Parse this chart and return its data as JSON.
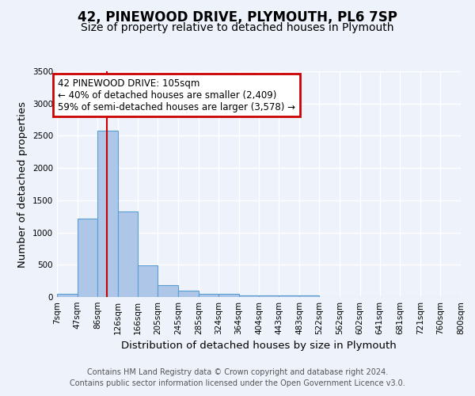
{
  "title": "42, PINEWOOD DRIVE, PLYMOUTH, PL6 7SP",
  "subtitle": "Size of property relative to detached houses in Plymouth",
  "xlabel": "Distribution of detached houses by size in Plymouth",
  "ylabel": "Number of detached properties",
  "bin_edges": [
    7,
    47,
    86,
    126,
    166,
    205,
    245,
    285,
    324,
    364,
    404,
    443,
    483,
    522,
    562,
    602,
    641,
    681,
    721,
    760,
    800
  ],
  "bin_labels": [
    "7sqm",
    "47sqm",
    "86sqm",
    "126sqm",
    "166sqm",
    "205sqm",
    "245sqm",
    "285sqm",
    "324sqm",
    "364sqm",
    "404sqm",
    "443sqm",
    "483sqm",
    "522sqm",
    "562sqm",
    "602sqm",
    "641sqm",
    "681sqm",
    "721sqm",
    "760sqm",
    "800sqm"
  ],
  "bar_heights": [
    50,
    1220,
    2580,
    1330,
    490,
    190,
    100,
    50,
    45,
    30,
    30,
    30,
    30,
    0,
    0,
    0,
    0,
    0,
    0,
    0
  ],
  "bar_color": "#aec6e8",
  "bar_edge_color": "#5a9fd4",
  "property_size": 105,
  "vline_color": "#cc0000",
  "annotation_text": "42 PINEWOOD DRIVE: 105sqm\n← 40% of detached houses are smaller (2,409)\n59% of semi-detached houses are larger (3,578) →",
  "annotation_box_color": "#cc0000",
  "ylim": [
    0,
    3500
  ],
  "yticks": [
    0,
    500,
    1000,
    1500,
    2000,
    2500,
    3000,
    3500
  ],
  "background_color": "#eef2fb",
  "grid_color": "#ffffff",
  "footer_line1": "Contains HM Land Registry data © Crown copyright and database right 2024.",
  "footer_line2": "Contains public sector information licensed under the Open Government Licence v3.0.",
  "title_fontsize": 12,
  "subtitle_fontsize": 10,
  "axis_label_fontsize": 9.5,
  "tick_fontsize": 7.5,
  "annotation_fontsize": 8.5,
  "footer_fontsize": 7
}
